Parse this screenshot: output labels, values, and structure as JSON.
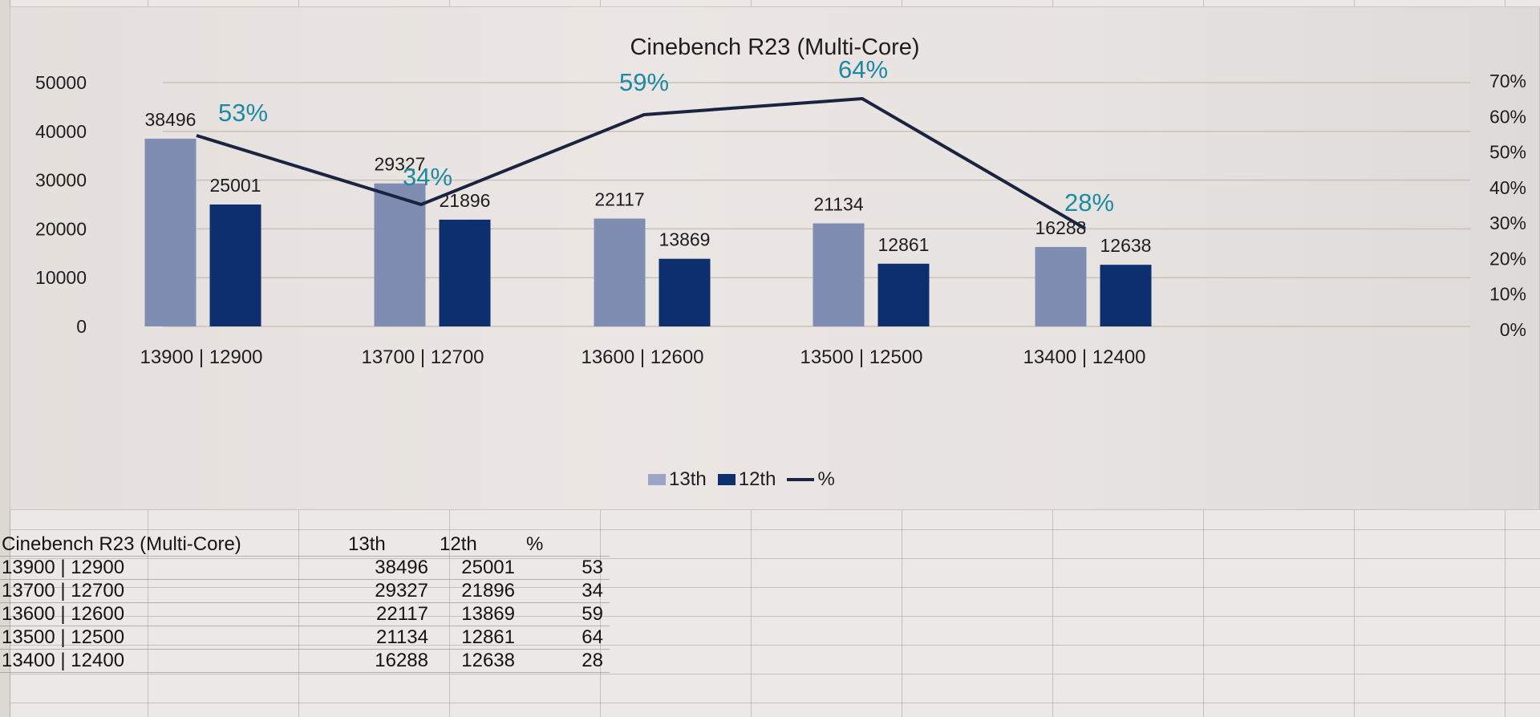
{
  "chart_data": {
    "type": "bar",
    "title": "Cinebench R23 (Multi-Core)",
    "categories": [
      "13900 | 12900",
      "13700 | 12700",
      "13600 | 12600",
      "13500 | 12500",
      "13400 | 12400"
    ],
    "series": [
      {
        "name": "13th",
        "type": "bar",
        "axis": "left",
        "color": "#7f8db3",
        "values": [
          38496,
          29327,
          22117,
          21134,
          16288
        ]
      },
      {
        "name": "12th",
        "type": "bar",
        "axis": "left",
        "color": "#0d2f6e",
        "values": [
          25001,
          21896,
          13869,
          12861,
          12638
        ]
      },
      {
        "name": "%",
        "type": "line",
        "axis": "right",
        "color": "#1a2340",
        "values": [
          53,
          34,
          59,
          64,
          28
        ]
      }
    ],
    "xlabel": "",
    "ylabel": "",
    "y_left": {
      "ylim": [
        0,
        50000
      ],
      "ticks": [
        "0",
        "10000",
        "20000",
        "30000",
        "40000",
        "50000"
      ]
    },
    "y_right": {
      "ylim": [
        0,
        70
      ],
      "ticks": [
        "0%",
        "10%",
        "20%",
        "30%",
        "40%",
        "50%",
        "60%",
        "70%"
      ]
    },
    "grid": true,
    "legend_position": "bottom",
    "data_labels": {
      "13th": [
        "38496",
        "29327",
        "22117",
        "21134",
        "16288"
      ],
      "12th": [
        "25001",
        "21896",
        "13869",
        "12861",
        "12638"
      ],
      "pct": [
        "53%",
        "34%",
        "59%",
        "64%",
        "28%"
      ]
    }
  },
  "legend": {
    "items": [
      {
        "label": "13th",
        "color": "#9aa5c8"
      },
      {
        "label": "12th",
        "color": "#0d2f6e"
      },
      {
        "label": "%",
        "color": "#1a2340"
      }
    ]
  },
  "table": {
    "header": {
      "name": "Cinebench R23 (Multi-Core)",
      "col13": "13th",
      "col12": "12th",
      "pct": "%"
    },
    "rows": [
      {
        "name": "13900 | 12900",
        "col13": "38496",
        "col12": "25001",
        "pct": "53"
      },
      {
        "name": "13700 | 12700",
        "col13": "29327",
        "col12": "21896",
        "pct": "34"
      },
      {
        "name": "13600 | 12600",
        "col13": "22117",
        "col12": "13869",
        "pct": "59"
      },
      {
        "name": "13500 | 12500",
        "col13": "21134",
        "col12": "12861",
        "pct": "64"
      },
      {
        "name": "13400 | 12400",
        "col13": "16288",
        "col12": "12638",
        "pct": "28"
      }
    ]
  }
}
